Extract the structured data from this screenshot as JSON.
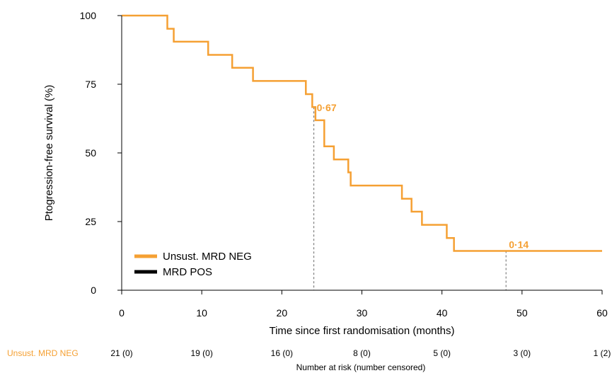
{
  "chart_data": {
    "type": "line",
    "subtype": "kaplan-meier-step",
    "xlabel": "Time since first randomisation (months)",
    "ylabel": "Ptogression-free survival (%)",
    "xlim": [
      0,
      60
    ],
    "ylim": [
      0,
      100
    ],
    "x_ticks": [
      0,
      10,
      20,
      30,
      40,
      50,
      60
    ],
    "y_ticks": [
      0,
      25,
      50,
      75,
      100
    ],
    "x_tick_labels": [
      "0",
      "10",
      "20",
      "30",
      "40",
      "50",
      "60"
    ],
    "y_tick_labels": [
      "0",
      "25",
      "50",
      "75",
      "100"
    ],
    "grid": false,
    "legend_position": "bottom-left",
    "legend": [
      {
        "label": "Unsust. MRD NEG",
        "color": "#F5A033"
      },
      {
        "label": "MRD POS",
        "color": "#000000"
      }
    ],
    "series": [
      {
        "name": "Unsust. MRD NEG",
        "color": "#F5A033",
        "x": [
          0,
          5.7,
          6.5,
          10.8,
          13.8,
          16.4,
          23.0,
          23.8,
          24.2,
          25.3,
          26.5,
          28.3,
          28.6,
          35.0,
          36.2,
          37.5,
          40.6,
          41.5,
          60
        ],
        "y": [
          100,
          95.2,
          90.5,
          85.7,
          81.0,
          76.2,
          71.4,
          66.7,
          61.9,
          52.4,
          47.6,
          42.9,
          38.1,
          33.3,
          28.6,
          23.8,
          19.0,
          14.3,
          14.3
        ]
      },
      {
        "name": "MRD POS",
        "color": "#000000",
        "x": [],
        "y": []
      }
    ],
    "annotations": [
      {
        "text": "0·67",
        "x": 24,
        "y": 66.7,
        "color": "#F5A033"
      },
      {
        "text": "0·14",
        "x": 48,
        "y": 14.3,
        "color": "#F5A033"
      }
    ],
    "reference_lines": [
      {
        "x": 24,
        "y_top": 66.7,
        "style": "dashed",
        "color": "#666666"
      },
      {
        "x": 48,
        "y_top": 14.3,
        "style": "dashed",
        "color": "#666666"
      }
    ],
    "risk_table": {
      "title": "Number at risk (number censored)",
      "times": [
        0,
        10,
        20,
        30,
        40,
        50,
        60
      ],
      "rows": [
        {
          "label": "Unsust. MRD NEG",
          "color": "#F5A033",
          "values": [
            "21 (0)",
            "19 (0)",
            "16 (0)",
            "8 (0)",
            "5 (0)",
            "3 (0)",
            "1 (2)"
          ]
        }
      ]
    }
  }
}
